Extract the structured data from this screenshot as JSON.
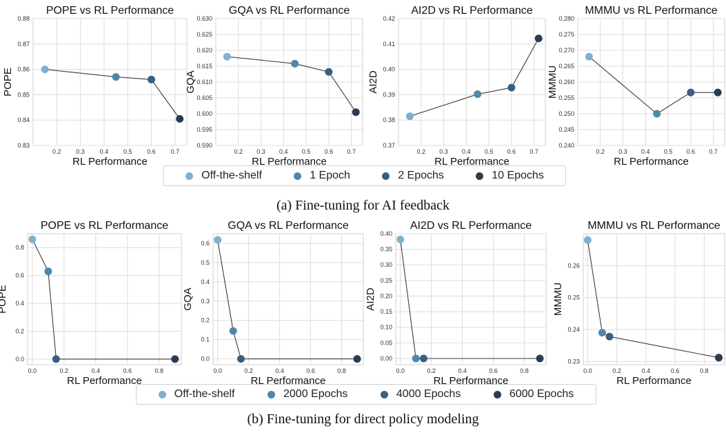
{
  "colors": {
    "off_the_shelf": "#7fb0cf",
    "stage1": "#4f87ab",
    "stage2": "#3a5f7f",
    "stage3": "#2a3b52"
  },
  "section_a": {
    "caption": "(a) Fine-tuning for AI feedback",
    "legend": [
      "Off-the-shelf",
      "1 Epoch",
      "2 Epochs",
      "10 Epochs"
    ]
  },
  "section_b": {
    "caption": "(b) Fine-tuning for direct policy modeling",
    "legend": [
      "Off-the-shelf",
      "2000 Epochs",
      "4000 Epochs",
      "6000 Epochs"
    ]
  },
  "chart_data": [
    {
      "type": "line",
      "title": "POPE vs RL Performance",
      "xlabel": "RL Performance",
      "ylabel": "POPE",
      "x": [
        0.15,
        0.45,
        0.6,
        0.72
      ],
      "y": [
        0.86,
        0.857,
        0.856,
        0.8405
      ],
      "xlim": [
        0.1,
        0.75
      ],
      "ylim": [
        0.83,
        0.88
      ],
      "xticks": [
        "0.2",
        "0.3",
        "0.4",
        "0.5",
        "0.6",
        "0.7"
      ],
      "yticks": [
        "0.83",
        "0.84",
        "0.85",
        "0.86",
        "0.87",
        "0.88"
      ],
      "grid": true
    },
    {
      "type": "line",
      "title": "GQA vs RL Performance",
      "xlabel": "RL Performance",
      "ylabel": "GQA",
      "x": [
        0.15,
        0.45,
        0.6,
        0.72
      ],
      "y": [
        0.618,
        0.6158,
        0.6132,
        0.6005
      ],
      "xlim": [
        0.1,
        0.75
      ],
      "ylim": [
        0.59,
        0.63
      ],
      "xticks": [
        "0.2",
        "0.3",
        "0.4",
        "0.5",
        "0.6",
        "0.7"
      ],
      "yticks": [
        "0.590",
        "0.595",
        "0.600",
        "0.605",
        "0.610",
        "0.615",
        "0.620",
        "0.625",
        "0.630"
      ],
      "grid": true
    },
    {
      "type": "line",
      "title": "AI2D vs RL Performance",
      "xlabel": "RL Performance",
      "ylabel": "AI2D",
      "x": [
        0.15,
        0.45,
        0.6,
        0.72
      ],
      "y": [
        0.3815,
        0.3902,
        0.3928,
        0.4122
      ],
      "xlim": [
        0.1,
        0.75
      ],
      "ylim": [
        0.37,
        0.42
      ],
      "xticks": [
        "0.2",
        "0.3",
        "0.4",
        "0.5",
        "0.6",
        "0.7"
      ],
      "yticks": [
        "0.37",
        "0.38",
        "0.39",
        "0.40",
        "0.41",
        "0.42"
      ],
      "grid": true
    },
    {
      "type": "line",
      "title": "MMMU vs RL Performance",
      "xlabel": "RL Performance",
      "ylabel": "MMMU",
      "x": [
        0.15,
        0.45,
        0.6,
        0.72
      ],
      "y": [
        0.268,
        0.25,
        0.2567,
        0.2567
      ],
      "xlim": [
        0.1,
        0.75
      ],
      "ylim": [
        0.24,
        0.28
      ],
      "xticks": [
        "0.2",
        "0.3",
        "0.4",
        "0.5",
        "0.6",
        "0.7"
      ],
      "yticks": [
        "0.240",
        "0.245",
        "0.250",
        "0.255",
        "0.260",
        "0.265",
        "0.270",
        "0.275",
        "0.280"
      ],
      "grid": true
    },
    {
      "type": "line",
      "title": "POPE vs RL Performance",
      "xlabel": "RL Performance",
      "ylabel": "POPE",
      "x": [
        0.0,
        0.1,
        0.15,
        0.9
      ],
      "y": [
        0.86,
        0.63,
        0.0,
        0.0
      ],
      "xlim": [
        -0.03,
        0.94
      ],
      "ylim": [
        -0.04,
        0.9
      ],
      "xticks": [
        "0.0",
        "0.2",
        "0.4",
        "0.6",
        "0.8"
      ],
      "yticks": [
        "0.0",
        "0.2",
        "0.4",
        "0.6",
        "0.8"
      ],
      "grid": true
    },
    {
      "type": "line",
      "title": "GQA vs RL Performance",
      "xlabel": "RL Performance",
      "ylabel": "GQA",
      "x": [
        0.0,
        0.1,
        0.15,
        0.9
      ],
      "y": [
        0.618,
        0.145,
        0.0,
        0.0
      ],
      "xlim": [
        -0.03,
        0.94
      ],
      "ylim": [
        -0.03,
        0.65
      ],
      "xticks": [
        "0.0",
        "0.2",
        "0.4",
        "0.6",
        "0.8"
      ],
      "yticks": [
        "0.0",
        "0.1",
        "0.2",
        "0.3",
        "0.4",
        "0.5",
        "0.6"
      ],
      "grid": true
    },
    {
      "type": "line",
      "title": "AI2D vs RL Performance",
      "xlabel": "RL Performance",
      "ylabel": "AI2D",
      "x": [
        0.0,
        0.1,
        0.15,
        0.9
      ],
      "y": [
        0.3815,
        0.0,
        0.0,
        0.0
      ],
      "xlim": [
        -0.03,
        0.94
      ],
      "ylim": [
        -0.02,
        0.4
      ],
      "xticks": [
        "0.0",
        "0.2",
        "0.4",
        "0.6",
        "0.8"
      ],
      "yticks": [
        "0.00",
        "0.05",
        "0.10",
        "0.15",
        "0.20",
        "0.25",
        "0.30",
        "0.35",
        "0.40"
      ],
      "grid": true
    },
    {
      "type": "line",
      "title": "MMMU vs RL Performance",
      "xlabel": "RL Performance",
      "ylabel": "MMMU",
      "x": [
        0.0,
        0.1,
        0.15,
        0.9
      ],
      "y": [
        0.268,
        0.239,
        0.2378,
        0.2312
      ],
      "xlim": [
        -0.03,
        0.94
      ],
      "ylim": [
        0.229,
        0.27
      ],
      "xticks": [
        "0.0",
        "0.2",
        "0.4",
        "0.6",
        "0.8"
      ],
      "yticks": [
        "0.23",
        "0.24",
        "0.25",
        "0.26"
      ],
      "grid": true
    }
  ]
}
